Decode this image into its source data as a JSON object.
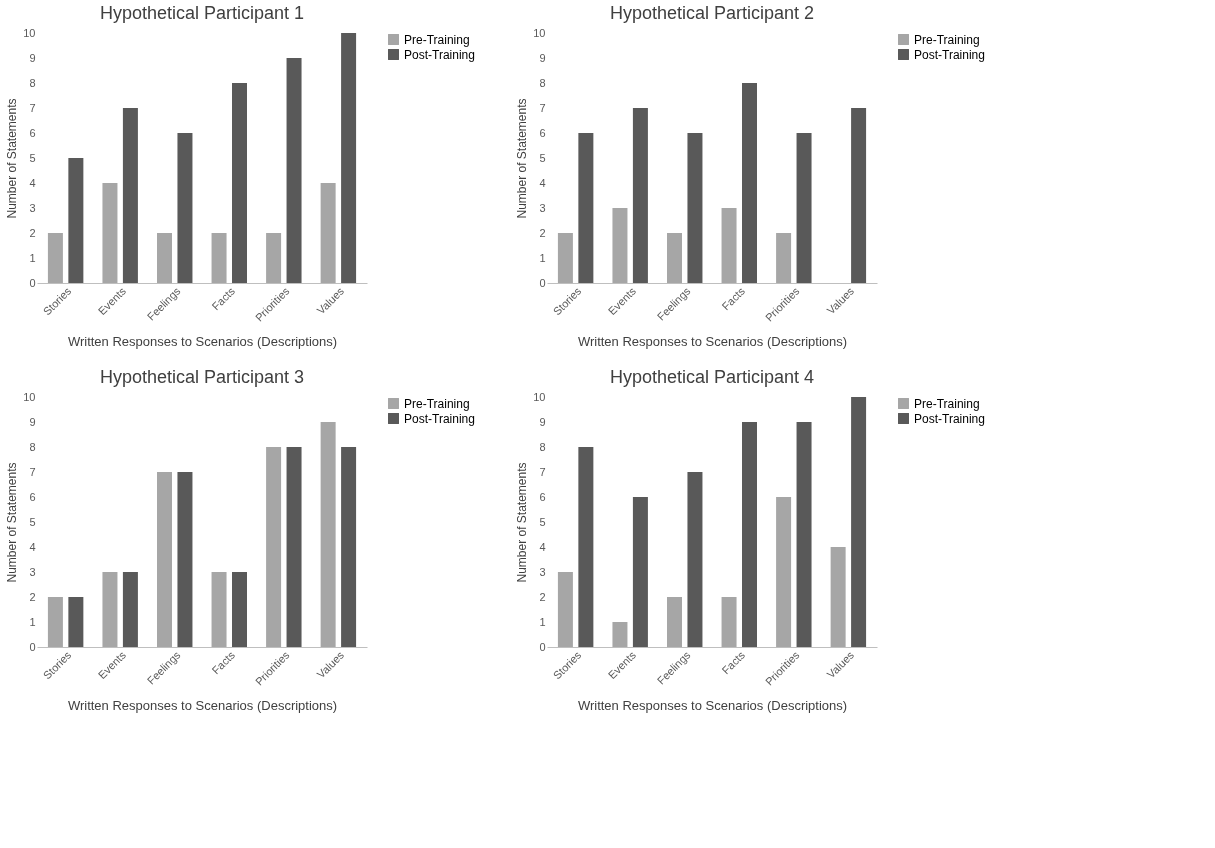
{
  "chart_data": [
    {
      "type": "bar",
      "title": "Hypothetical Participant 1",
      "xlabel": "Written Responses to Scenarios (Descriptions)",
      "ylabel": "Number of Statements",
      "categories": [
        "Stories",
        "Events",
        "Feelings",
        "Facts",
        "Priorities",
        "Values"
      ],
      "series": [
        {
          "name": "Pre-Training",
          "color": "#a6a6a6",
          "values": [
            2,
            4,
            2,
            2,
            2,
            4
          ]
        },
        {
          "name": "Post-Training",
          "color": "#595959",
          "values": [
            5,
            7,
            6,
            8,
            9,
            10
          ]
        }
      ],
      "ylim": [
        0,
        10
      ],
      "yticks": [
        0,
        1,
        2,
        3,
        4,
        5,
        6,
        7,
        8,
        9,
        10
      ],
      "grid": false,
      "legend": "right"
    },
    {
      "type": "bar",
      "title": "Hypothetical Participant 2",
      "xlabel": "Written Responses to Scenarios (Descriptions)",
      "ylabel": "Number of Statements",
      "categories": [
        "Stories",
        "Events",
        "Feelings",
        "Facts",
        "Priorities",
        "Values"
      ],
      "series": [
        {
          "name": "Pre-Training",
          "color": "#a6a6a6",
          "values": [
            2,
            3,
            2,
            3,
            2,
            0
          ]
        },
        {
          "name": "Post-Training",
          "color": "#595959",
          "values": [
            6,
            7,
            6,
            8,
            6,
            7
          ]
        }
      ],
      "ylim": [
        0,
        10
      ],
      "yticks": [
        0,
        1,
        2,
        3,
        4,
        5,
        6,
        7,
        8,
        9,
        10
      ],
      "grid": false,
      "legend": "right"
    },
    {
      "type": "bar",
      "title": "Hypothetical Participant 3",
      "xlabel": "Written Responses to Scenarios (Descriptions)",
      "ylabel": "Number of Statements",
      "categories": [
        "Stories",
        "Events",
        "Feelings",
        "Facts",
        "Priorities",
        "Values"
      ],
      "series": [
        {
          "name": "Pre-Training",
          "color": "#a6a6a6",
          "values": [
            2,
            3,
            7,
            3,
            8,
            9
          ]
        },
        {
          "name": "Post-Training",
          "color": "#595959",
          "values": [
            2,
            3,
            7,
            3,
            8,
            8
          ]
        }
      ],
      "ylim": [
        0,
        10
      ],
      "yticks": [
        0,
        1,
        2,
        3,
        4,
        5,
        6,
        7,
        8,
        9,
        10
      ],
      "grid": false,
      "legend": "right"
    },
    {
      "type": "bar",
      "title": "Hypothetical Participant 4",
      "xlabel": "Written Responses to Scenarios (Descriptions)",
      "ylabel": "Number of Statements",
      "categories": [
        "Stories",
        "Events",
        "Feelings",
        "Facts",
        "Priorities",
        "Values"
      ],
      "series": [
        {
          "name": "Pre-Training",
          "color": "#a6a6a6",
          "values": [
            3,
            1,
            2,
            2,
            6,
            4
          ]
        },
        {
          "name": "Post-Training",
          "color": "#595959",
          "values": [
            8,
            6,
            7,
            9,
            9,
            10
          ]
        }
      ],
      "ylim": [
        0,
        10
      ],
      "yticks": [
        0,
        1,
        2,
        3,
        4,
        5,
        6,
        7,
        8,
        9,
        10
      ],
      "grid": false,
      "legend": "right"
    }
  ]
}
